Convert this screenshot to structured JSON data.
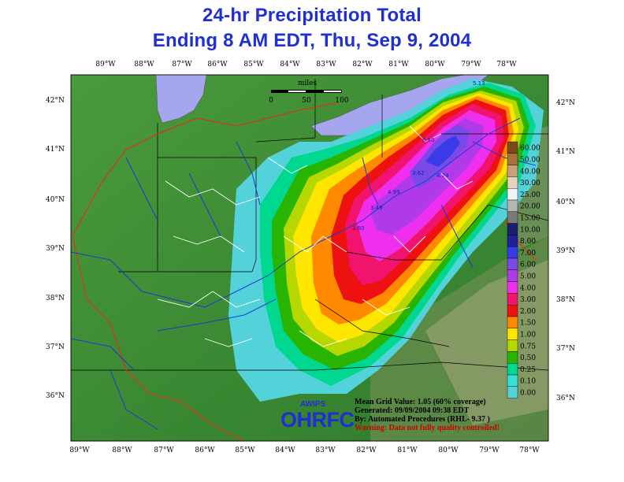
{
  "title": {
    "line1": "24-hr Precipitation Total",
    "line2": "Ending 8 AM EDT, Thu, Sep 9, 2004"
  },
  "map": {
    "top_longitudes": [
      "89°W",
      "88°W",
      "87°W",
      "86°W",
      "85°W",
      "84°W",
      "83°W",
      "82°W",
      "81°W",
      "80°W",
      "79°W",
      "78°W"
    ],
    "bottom_longitudes": [
      "89°W",
      "88°W",
      "87°W",
      "86°W",
      "85°W",
      "84°W",
      "83°W",
      "82°W",
      "81°W",
      "80°W",
      "79°W",
      "78°W"
    ],
    "left_latitudes": [
      "42°N",
      "41°N",
      "40°N",
      "39°N",
      "38°N",
      "37°N",
      "36°N"
    ],
    "right_latitudes": [
      "42°N",
      "41°N",
      "40°N",
      "39°N",
      "38°N",
      "37°N",
      "36°N"
    ],
    "scale_bar": {
      "title": "miles",
      "ticks": [
        "0",
        "50",
        "100"
      ]
    },
    "point_values": [
      "5.13",
      "6.80",
      "4.74",
      "4.99",
      "3.49",
      "3.62",
      "3.60"
    ]
  },
  "legend": {
    "entries": [
      {
        "label": "60.00",
        "color": "#7a4a14"
      },
      {
        "label": "50.00",
        "color": "#a9713c"
      },
      {
        "label": "40.00",
        "color": "#c9a07a"
      },
      {
        "label": "30.00",
        "color": "#e7d3bd"
      },
      {
        "label": "25.00",
        "color": "#f2f2f2"
      },
      {
        "label": "20.00",
        "color": "#b5b5b5"
      },
      {
        "label": "15.00",
        "color": "#7a7a7a"
      },
      {
        "label": "10.00",
        "color": "#1e1e6e"
      },
      {
        "label": "8.00",
        "color": "#20209a"
      },
      {
        "label": "7.00",
        "color": "#3a3ae6"
      },
      {
        "label": "6.00",
        "color": "#7a4ae8"
      },
      {
        "label": "5.00",
        "color": "#b03ae8"
      },
      {
        "label": "4.00",
        "color": "#ee30ee"
      },
      {
        "label": "3.00",
        "color": "#f0146e"
      },
      {
        "label": "2.00",
        "color": "#ee1111"
      },
      {
        "label": "1.50",
        "color": "#ff8a00"
      },
      {
        "label": "1.00",
        "color": "#ffe600"
      },
      {
        "label": "0.75",
        "color": "#b6d800"
      },
      {
        "label": "0.50",
        "color": "#28b400"
      },
      {
        "label": "0.25",
        "color": "#00d890"
      },
      {
        "label": "0.10",
        "color": "#36e0d8"
      },
      {
        "label": "0.00",
        "color": "#54d2da"
      }
    ]
  },
  "footer": {
    "awips": "AWIPS",
    "ohrfc": "OHRFC",
    "mean": "Mean Grid Value: 1.05 (60% coverage)",
    "generated": "Generated: 09/09/2004 09:38 EDT",
    "by": "By: Automated Procedures (RHL- 9.37 )",
    "warning": "Warning: Data not fully quality controlled!"
  },
  "colors": {
    "title": "#1f2fd0",
    "lake": "#a6a6ee",
    "terrain": "#3f8f3a",
    "rivers": "#1a3ad6",
    "basins": "#ffffff",
    "state_lines": "#000000",
    "rfc_boundary": "#d23a1a"
  }
}
